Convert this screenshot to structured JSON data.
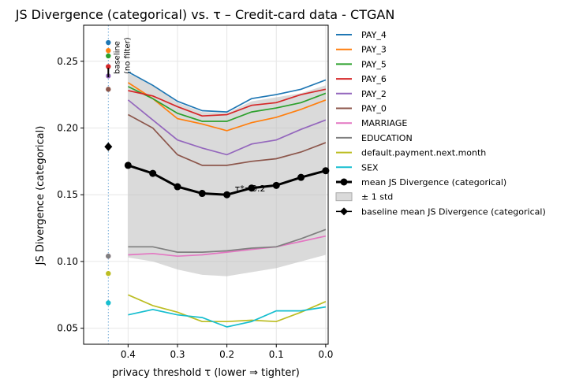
{
  "chart_data": {
    "type": "line",
    "title": "JS Divergence (categorical) vs. τ  – Credit-card data - CTGAN",
    "xlabel": "privacy threshold τ  (lower ⇒ tighter)",
    "ylabel": "JS Divergence (categorical)",
    "xlim": [
      0.49,
      -0.005
    ],
    "ylim": [
      0.038,
      0.277
    ],
    "x_ticks": [
      0.4,
      0.3,
      0.2,
      0.1,
      0.0
    ],
    "x_tick_labels": [
      "0.4",
      "0.3",
      "0.2",
      "0.1",
      "0.0"
    ],
    "y_ticks": [
      0.05,
      0.1,
      0.15,
      0.2,
      0.25
    ],
    "y_tick_labels": [
      "0.05",
      "0.10",
      "0.15",
      "0.20",
      "0.25"
    ],
    "grid": true,
    "legend_position": "outside-right",
    "x": [
      0.4,
      0.35,
      0.3,
      0.25,
      0.2,
      0.15,
      0.1,
      0.05,
      0.0
    ],
    "series": [
      {
        "name": "PAY_4",
        "color": "#1f77b4",
        "values": [
          0.242,
          0.232,
          0.22,
          0.213,
          0.212,
          0.222,
          0.225,
          0.229,
          0.236
        ],
        "baseline": 0.264
      },
      {
        "name": "PAY_3",
        "color": "#ff7f0e",
        "values": [
          0.234,
          0.222,
          0.207,
          0.203,
          0.198,
          0.204,
          0.208,
          0.214,
          0.221
        ],
        "baseline": 0.258
      },
      {
        "name": "PAY_5",
        "color": "#2ca02c",
        "values": [
          0.231,
          0.222,
          0.211,
          0.205,
          0.205,
          0.212,
          0.215,
          0.219,
          0.226
        ],
        "baseline": 0.254
      },
      {
        "name": "PAY_6",
        "color": "#d62728",
        "values": [
          0.228,
          0.224,
          0.216,
          0.209,
          0.21,
          0.217,
          0.219,
          0.225,
          0.229
        ],
        "baseline": 0.246
      },
      {
        "name": "PAY_2",
        "color": "#9467bd",
        "values": [
          0.221,
          0.206,
          0.191,
          0.185,
          0.18,
          0.188,
          0.191,
          0.199,
          0.206
        ],
        "baseline": 0.239
      },
      {
        "name": "PAY_0",
        "color": "#8c564b",
        "values": [
          0.21,
          0.2,
          0.18,
          0.172,
          0.172,
          0.175,
          0.177,
          0.182,
          0.189
        ],
        "baseline": 0.229
      },
      {
        "name": "MARRIAGE",
        "color": "#e377c2",
        "values": [
          0.105,
          0.106,
          0.104,
          0.105,
          0.107,
          0.109,
          0.111,
          0.115,
          0.119
        ],
        "baseline": 0.104
      },
      {
        "name": "EDUCATION",
        "color": "#7f7f7f",
        "values": [
          0.111,
          0.111,
          0.107,
          0.107,
          0.108,
          0.11,
          0.111,
          0.117,
          0.124
        ],
        "baseline": 0.104
      },
      {
        "name": "default.payment.next.month",
        "color": "#bcbd22",
        "values": [
          0.075,
          0.067,
          0.062,
          0.055,
          0.055,
          0.056,
          0.055,
          0.062,
          0.07
        ],
        "baseline": 0.091
      },
      {
        "name": "SEX",
        "color": "#17becf",
        "values": [
          0.06,
          0.064,
          0.06,
          0.058,
          0.051,
          0.055,
          0.063,
          0.063,
          0.066
        ],
        "baseline": 0.069
      }
    ],
    "mean": {
      "name": "mean JS Divergence (categorical)",
      "color": "#000000",
      "values": [
        0.172,
        0.166,
        0.156,
        0.151,
        0.15,
        0.155,
        0.157,
        0.163,
        0.168
      ]
    },
    "std_band": {
      "name": "± 1 std",
      "color": "#bbbbbb",
      "upper": [
        0.241,
        0.232,
        0.219,
        0.212,
        0.211,
        0.22,
        0.223,
        0.226,
        0.232
      ],
      "lower": [
        0.103,
        0.1,
        0.094,
        0.09,
        0.089,
        0.092,
        0.095,
        0.1,
        0.105
      ]
    },
    "baseline": {
      "name": "baseline mean JS Divergence (categorical)",
      "x": 0.44,
      "mean": 0.186,
      "label_line1": "baseline",
      "label_line2": "(no filter)"
    },
    "annotation": {
      "text": "τ*=0.2",
      "x": 0.2,
      "y": 0.156
    }
  }
}
